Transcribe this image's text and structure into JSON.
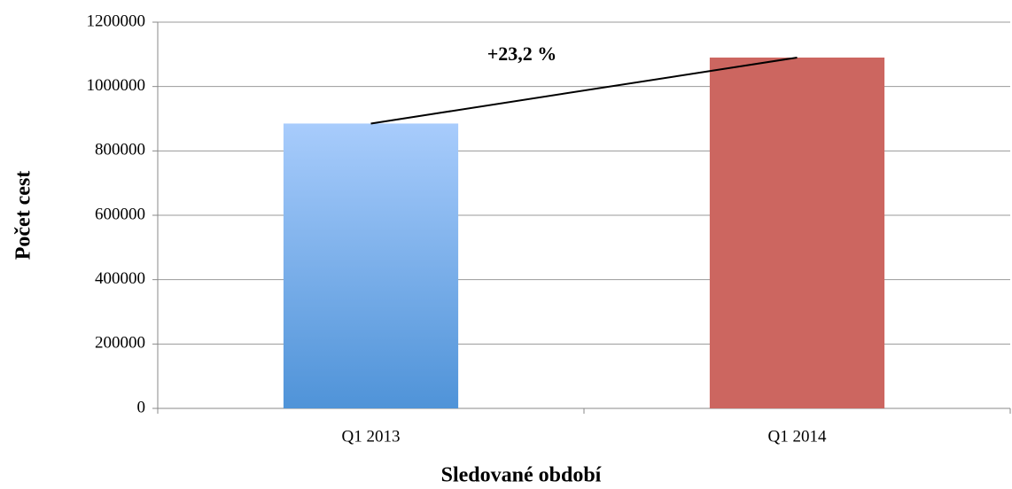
{
  "chart_data": {
    "type": "bar",
    "categories": [
      "Q1 2013",
      "Q1 2014"
    ],
    "values": [
      885000,
      1090000
    ],
    "bar_fills": [
      {
        "top": "#a8ccfc",
        "bottom": "#4f93d8"
      },
      {
        "top": "#cc6660",
        "bottom": "#cc6660"
      }
    ],
    "x_label": "Sledované období",
    "y_label": "Počet cest",
    "annotation": "+23,2 %",
    "ylim": [
      0,
      1200000
    ],
    "yticks": [
      0,
      200000,
      400000,
      600000,
      800000,
      1000000,
      1200000
    ],
    "grid": true
  }
}
